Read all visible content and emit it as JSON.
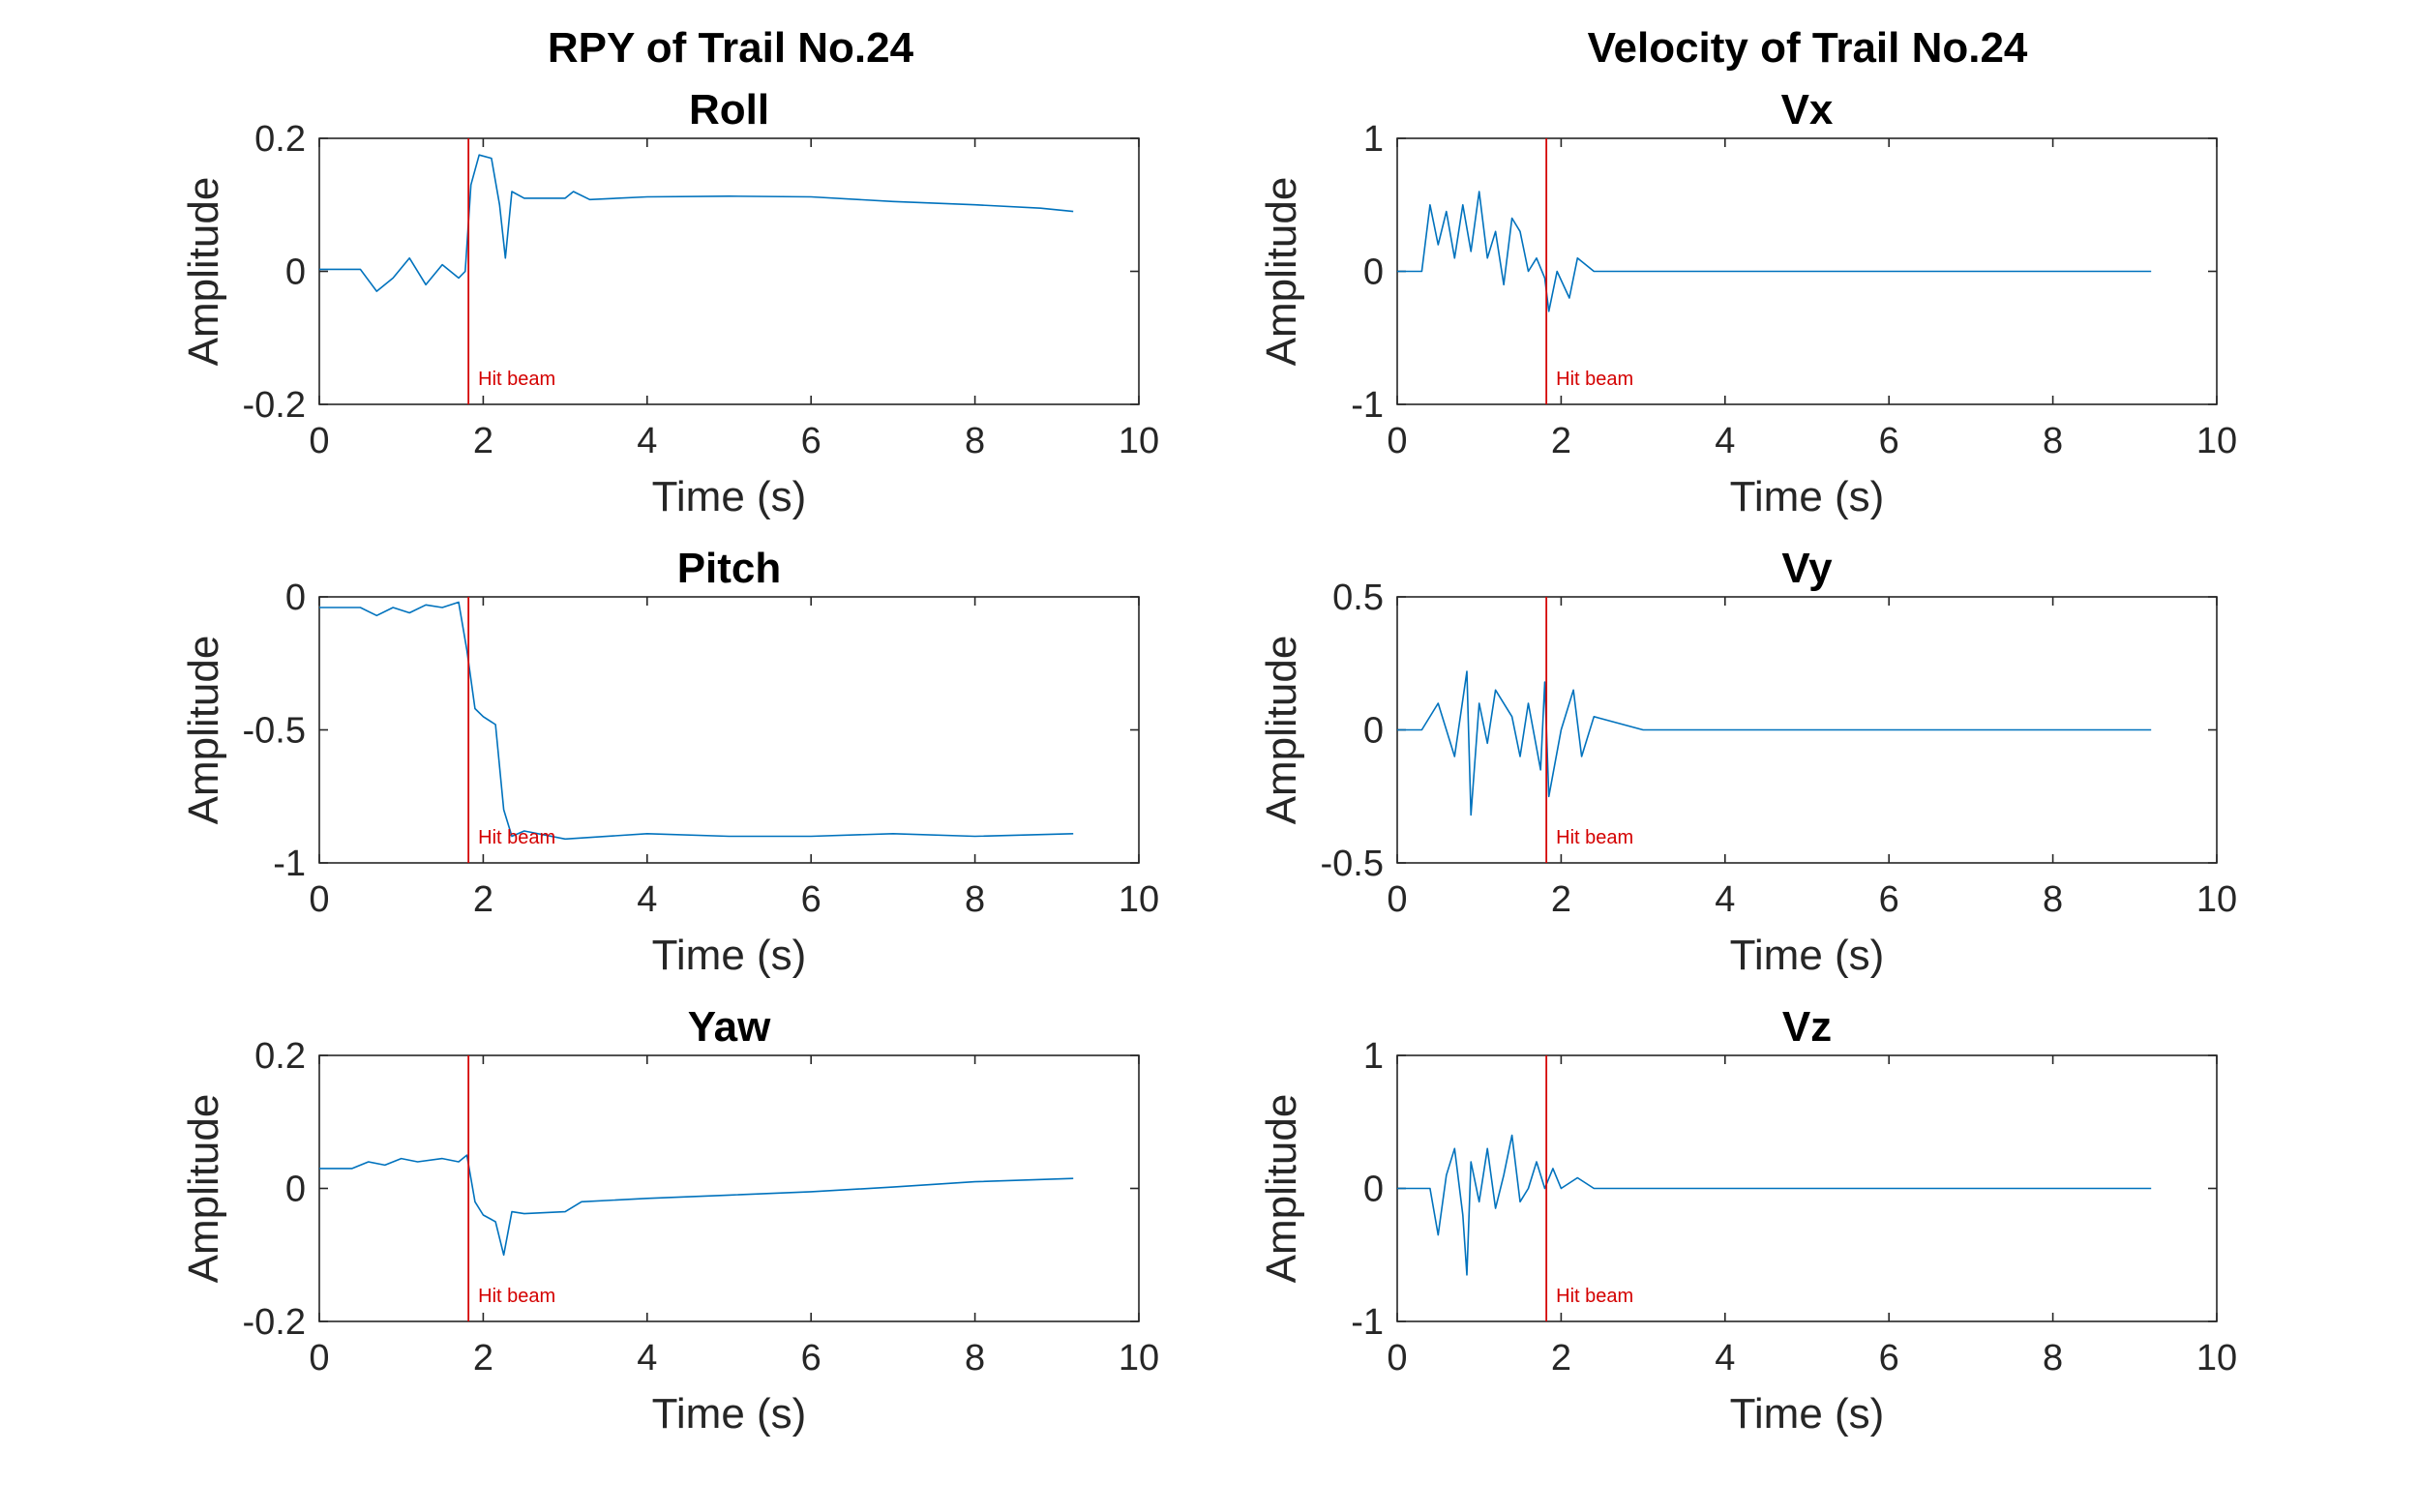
{
  "figure": {
    "column_titles": [
      "RPY of Trail No.24",
      "Velocity of Trail No.24"
    ]
  },
  "colors": {
    "series": "#0072BD",
    "marker": "#D40000",
    "axis": "#262626"
  },
  "chart_data": [
    {
      "type": "line",
      "title": "Roll",
      "xlabel": "Time (s)",
      "ylabel": "Amplitude",
      "xlim": [
        0,
        10
      ],
      "ylim": [
        -0.2,
        0.2
      ],
      "xticks": [
        "0",
        "2",
        "4",
        "6",
        "8",
        "10"
      ],
      "yticks": [
        "-0.2",
        "0",
        "0.2"
      ],
      "grid": false,
      "marker": {
        "x": 1.82,
        "label": "Hit beam"
      },
      "series": [
        {
          "x": [
            0,
            0.5,
            0.7,
            0.9,
            1.1,
            1.3,
            1.5,
            1.7,
            1.78,
            1.85,
            1.95,
            2.1,
            2.2,
            2.27,
            2.35,
            2.5,
            3.0,
            3.1,
            3.3,
            4.0,
            5.0,
            6.0,
            7.0,
            8.0,
            8.8,
            9.2
          ],
          "y": [
            0.003,
            0.003,
            -0.03,
            -0.01,
            0.02,
            -0.02,
            0.01,
            -0.01,
            0.0,
            0.13,
            0.175,
            0.17,
            0.1,
            0.02,
            0.12,
            0.11,
            0.11,
            0.12,
            0.108,
            0.112,
            0.113,
            0.112,
            0.105,
            0.1,
            0.095,
            0.09
          ]
        }
      ]
    },
    {
      "type": "line",
      "title": "Pitch",
      "xlabel": "Time (s)",
      "ylabel": "Amplitude",
      "xlim": [
        0,
        10
      ],
      "ylim": [
        -1,
        0
      ],
      "xticks": [
        "0",
        "2",
        "4",
        "6",
        "8",
        "10"
      ],
      "yticks": [
        "-1",
        "-0.5",
        "0"
      ],
      "grid": false,
      "marker": {
        "x": 1.82,
        "label": "Hit beam"
      },
      "series": [
        {
          "x": [
            0,
            0.5,
            0.7,
            0.9,
            1.1,
            1.3,
            1.5,
            1.7,
            1.8,
            1.9,
            2.0,
            2.15,
            2.25,
            2.35,
            2.5,
            3.0,
            4.0,
            5.0,
            6.0,
            7.0,
            8.0,
            9.2
          ],
          "y": [
            -0.04,
            -0.04,
            -0.07,
            -0.04,
            -0.06,
            -0.03,
            -0.04,
            -0.02,
            -0.2,
            -0.42,
            -0.45,
            -0.48,
            -0.8,
            -0.9,
            -0.88,
            -0.91,
            -0.89,
            -0.9,
            -0.9,
            -0.89,
            -0.9,
            -0.89
          ]
        }
      ]
    },
    {
      "type": "line",
      "title": "Yaw",
      "xlabel": "Time (s)",
      "ylabel": "Amplitude",
      "xlim": [
        0,
        10
      ],
      "ylim": [
        -0.2,
        0.2
      ],
      "xticks": [
        "0",
        "2",
        "4",
        "6",
        "8",
        "10"
      ],
      "yticks": [
        "-0.2",
        "0",
        "0.2"
      ],
      "grid": false,
      "marker": {
        "x": 1.82,
        "label": "Hit beam"
      },
      "series": [
        {
          "x": [
            0,
            0.4,
            0.6,
            0.8,
            1.0,
            1.2,
            1.5,
            1.7,
            1.8,
            1.9,
            2.0,
            2.15,
            2.25,
            2.35,
            2.5,
            3.0,
            3.2,
            4.0,
            5.0,
            6.0,
            7.0,
            8.0,
            9.2
          ],
          "y": [
            0.03,
            0.03,
            0.04,
            0.035,
            0.045,
            0.04,
            0.045,
            0.04,
            0.05,
            -0.02,
            -0.04,
            -0.05,
            -0.1,
            -0.035,
            -0.038,
            -0.035,
            -0.02,
            -0.015,
            -0.01,
            -0.005,
            0.002,
            0.01,
            0.015
          ]
        }
      ]
    },
    {
      "type": "line",
      "title": "Vx",
      "xlabel": "Time (s)",
      "ylabel": "Amplitude",
      "xlim": [
        0,
        10
      ],
      "ylim": [
        -1,
        1
      ],
      "xticks": [
        "0",
        "2",
        "4",
        "6",
        "8",
        "10"
      ],
      "yticks": [
        "-1",
        "0",
        "1"
      ],
      "grid": false,
      "marker": {
        "x": 1.82,
        "label": "Hit beam"
      },
      "series": [
        {
          "x": [
            0,
            0.3,
            0.4,
            0.5,
            0.6,
            0.7,
            0.8,
            0.9,
            1.0,
            1.1,
            1.2,
            1.3,
            1.4,
            1.5,
            1.6,
            1.7,
            1.8,
            1.85,
            1.95,
            2.1,
            2.2,
            2.4,
            3.0,
            4.0,
            5.0,
            6.0,
            7.0,
            8.0,
            9.2
          ],
          "y": [
            0.0,
            0.0,
            0.5,
            0.2,
            0.45,
            0.1,
            0.5,
            0.15,
            0.6,
            0.1,
            0.3,
            -0.1,
            0.4,
            0.3,
            0.0,
            0.1,
            -0.05,
            -0.3,
            0.0,
            -0.2,
            0.1,
            0.0,
            0.0,
            0.0,
            0.0,
            0.0,
            0.0,
            0.0,
            0.0
          ]
        }
      ]
    },
    {
      "type": "line",
      "title": "Vy",
      "xlabel": "Time (s)",
      "ylabel": "Amplitude",
      "xlim": [
        0,
        10
      ],
      "ylim": [
        -0.5,
        0.5
      ],
      "xticks": [
        "0",
        "2",
        "4",
        "6",
        "8",
        "10"
      ],
      "yticks": [
        "-0.5",
        "0",
        "0.5"
      ],
      "grid": false,
      "marker": {
        "x": 1.82,
        "label": "Hit beam"
      },
      "series": [
        {
          "x": [
            0,
            0.3,
            0.5,
            0.7,
            0.85,
            0.9,
            1.0,
            1.1,
            1.2,
            1.4,
            1.5,
            1.6,
            1.75,
            1.8,
            1.85,
            2.0,
            2.15,
            2.25,
            2.4,
            3.0,
            4.0,
            5.0,
            6.0,
            7.0,
            8.0,
            9.2
          ],
          "y": [
            0.0,
            0.0,
            0.1,
            -0.1,
            0.22,
            -0.32,
            0.1,
            -0.05,
            0.15,
            0.05,
            -0.1,
            0.1,
            -0.15,
            0.18,
            -0.25,
            0.0,
            0.15,
            -0.1,
            0.05,
            0.0,
            0.0,
            0.0,
            0.0,
            0.0,
            0.0,
            0.0
          ]
        }
      ]
    },
    {
      "type": "line",
      "title": "Vz",
      "xlabel": "Time (s)",
      "ylabel": "Amplitude",
      "xlim": [
        0,
        10
      ],
      "ylim": [
        -1,
        1
      ],
      "xticks": [
        "0",
        "2",
        "4",
        "6",
        "8",
        "10"
      ],
      "yticks": [
        "-1",
        "0",
        "1"
      ],
      "grid": false,
      "marker": {
        "x": 1.82,
        "label": "Hit beam"
      },
      "series": [
        {
          "x": [
            0,
            0.4,
            0.5,
            0.6,
            0.7,
            0.8,
            0.85,
            0.9,
            1.0,
            1.1,
            1.2,
            1.3,
            1.4,
            1.5,
            1.6,
            1.7,
            1.8,
            1.9,
            2.0,
            2.2,
            2.4,
            3.0,
            4.0,
            5.0,
            6.0,
            7.0,
            8.0,
            9.2
          ],
          "y": [
            0.0,
            0.0,
            -0.35,
            0.1,
            0.3,
            -0.2,
            -0.65,
            0.2,
            -0.1,
            0.3,
            -0.15,
            0.1,
            0.4,
            -0.1,
            0.0,
            0.2,
            0.0,
            0.15,
            0.0,
            0.08,
            0.0,
            0.0,
            0.0,
            0.0,
            0.0,
            0.0,
            0.0,
            0.0
          ]
        }
      ]
    }
  ]
}
